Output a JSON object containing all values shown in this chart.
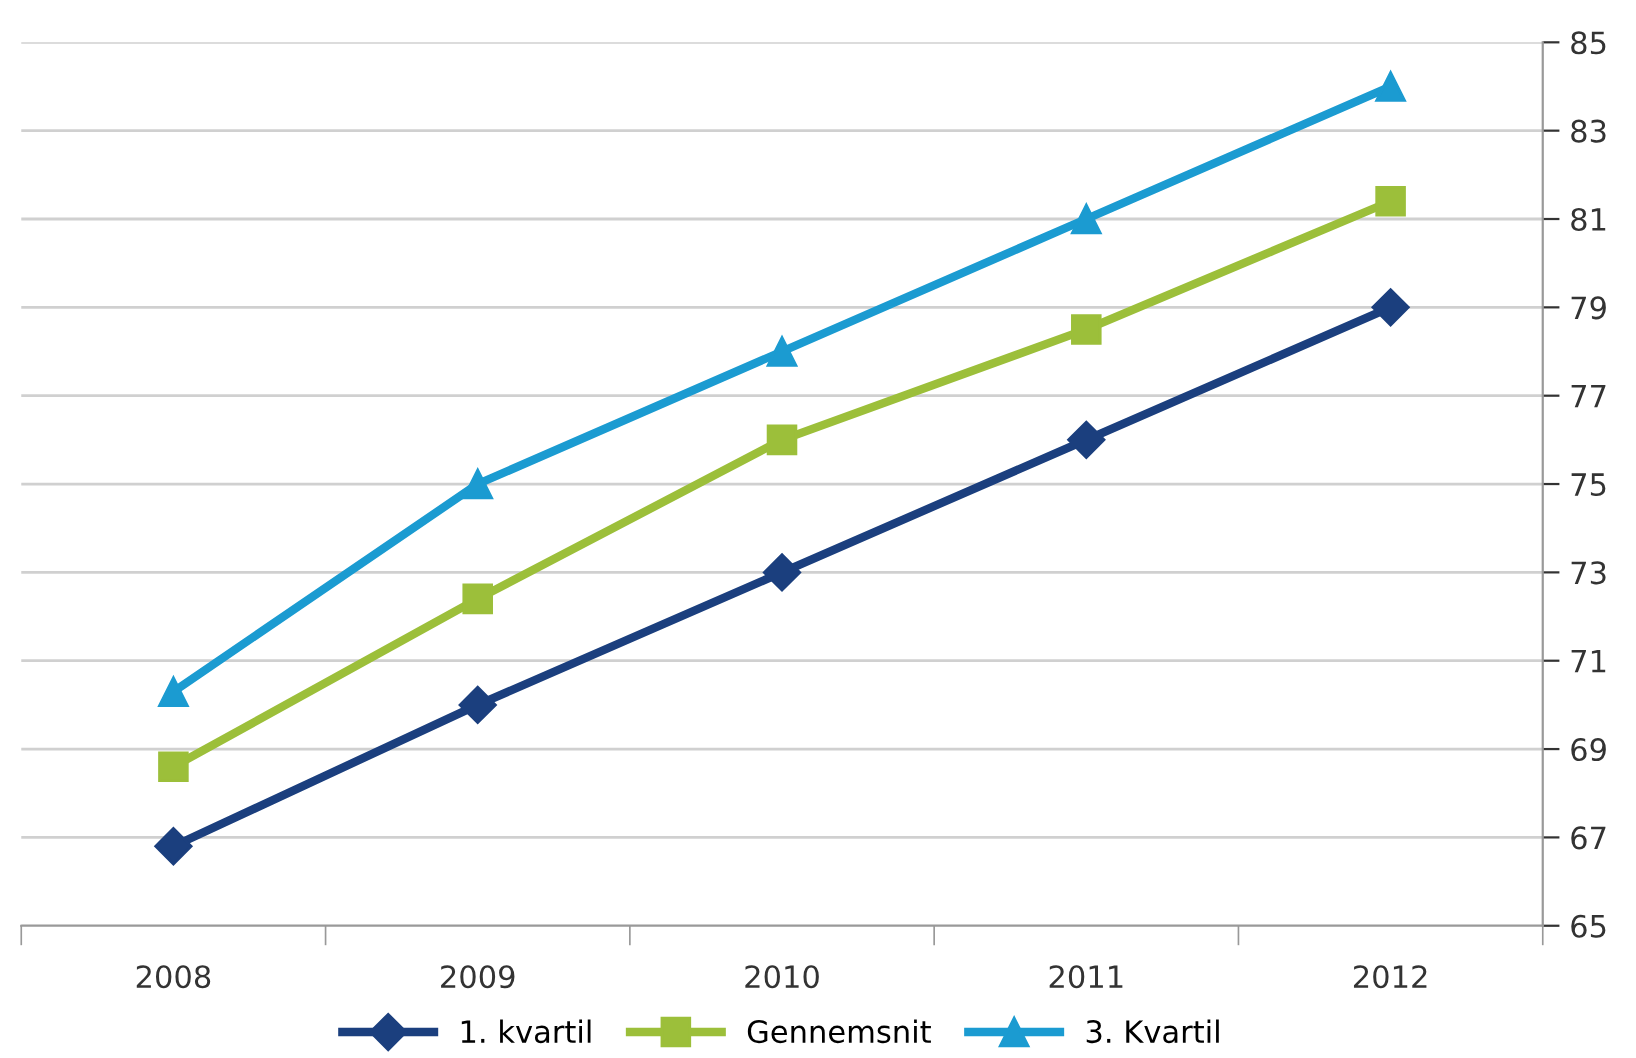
{
  "chart_data": {
    "type": "line",
    "categories": [
      "2008",
      "2009",
      "2010",
      "2011",
      "2012"
    ],
    "series": [
      {
        "name": "1. kvartil",
        "color": "#1b3f7e",
        "marker": "diamond",
        "values": [
          66.8,
          70,
          73,
          76,
          79
        ]
      },
      {
        "name": "Gennemsnit",
        "color": "#9cbf3a",
        "marker": "square",
        "values": [
          68.6,
          72.4,
          76,
          78.5,
          81.4
        ]
      },
      {
        "name": "3. Kvartil",
        "color": "#1b9bd1",
        "marker": "triangle",
        "values": [
          70.3,
          75,
          78,
          81,
          84
        ]
      }
    ],
    "ylim": [
      65,
      85
    ],
    "yticks": [
      65,
      67,
      69,
      71,
      73,
      75,
      77,
      79,
      81,
      83,
      85
    ],
    "grid": "y",
    "legend": "bottom",
    "line_style": "solid"
  }
}
